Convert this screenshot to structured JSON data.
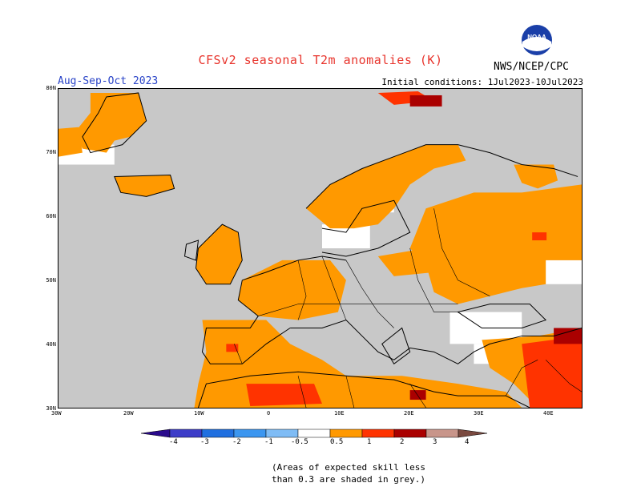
{
  "header": {
    "title": "CFSv2 seasonal T2m anomalies (K)",
    "season": "Aug-Sep-Oct 2023",
    "initial_conditions": "Initial conditions: 1Jul2023-10Jul2023",
    "organization": "NWS/NCEP/CPC",
    "logo_text": "NOAA"
  },
  "map": {
    "lat_labels": [
      "80N",
      "70N",
      "60N",
      "50N",
      "40N",
      "30N"
    ],
    "lon_labels": [
      "30W",
      "20W",
      "10W",
      "0",
      "10E",
      "20E",
      "30E",
      "40E"
    ],
    "colors": {
      "ocean_grey": "#c8c8c8",
      "low_skill": "#c8c8c8",
      "near_normal": "#ffffff",
      "warm_05_1": "#ff9900",
      "warm_1_2": "#ff3300",
      "warm_2_3": "#aa0000"
    }
  },
  "legend": {
    "labels": [
      "-4",
      "-3",
      "-2",
      "-1",
      "-0.5",
      "0.5",
      "1",
      "2",
      "3",
      "4"
    ],
    "colors": [
      "#2a0a8c",
      "#3c3cc8",
      "#1f6fe0",
      "#3b96f0",
      "#7fbcf5",
      "#ffffff",
      "#ff9900",
      "#ff3300",
      "#aa0000",
      "#c8958a",
      "#7a4a40"
    ]
  },
  "note": {
    "line1": "(Areas of expected skill less",
    "line2": "than 0.3 are shaded in grey.)"
  }
}
